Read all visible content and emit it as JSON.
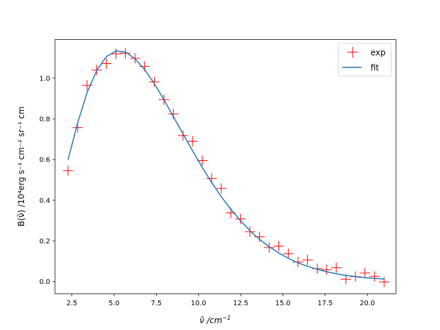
{
  "chart_data": {
    "type": "scatter",
    "xlabel_main": "ν̃",
    "xlabel_unit": " /cm",
    "xlabel_exp": "−1",
    "ylabel": "B(ν̃) /10⁴erg s⁻¹ cm⁻² sr⁻¹ cm",
    "xlim": [
      1.5,
      21.7
    ],
    "ylim": [
      -0.06,
      1.19
    ],
    "xticks": [
      2.5,
      5.0,
      7.5,
      10.0,
      12.5,
      15.0,
      17.5,
      20.0
    ],
    "xtick_labels": [
      "2.5",
      "5.0",
      "7.5",
      "10.0",
      "12.5",
      "15.0",
      "17.5",
      "20.0"
    ],
    "yticks": [
      0.0,
      0.2,
      0.4,
      0.6,
      0.8,
      1.0
    ],
    "ytick_labels": [
      "0.0",
      "0.2",
      "0.4",
      "0.6",
      "0.8",
      "1.0"
    ],
    "grid": false,
    "legend_position": "top-right",
    "series": [
      {
        "name": "exp",
        "kind": "markers",
        "marker": "+",
        "color": "#ff0000",
        "x": [
          2.27,
          2.84,
          3.4,
          3.97,
          4.54,
          5.11,
          5.67,
          6.24,
          6.81,
          7.38,
          7.95,
          8.51,
          9.08,
          9.65,
          10.22,
          10.78,
          11.35,
          11.92,
          12.49,
          13.05,
          13.62,
          14.19,
          14.76,
          15.32,
          15.89,
          16.46,
          17.03,
          17.59,
          18.16,
          18.73,
          19.3,
          19.86,
          20.43,
          21.0
        ],
        "y": [
          0.545,
          0.757,
          0.965,
          1.04,
          1.072,
          1.12,
          1.123,
          1.098,
          1.058,
          0.982,
          0.895,
          0.824,
          0.718,
          0.69,
          0.595,
          0.507,
          0.458,
          0.337,
          0.308,
          0.245,
          0.22,
          0.167,
          0.174,
          0.137,
          0.096,
          0.106,
          0.063,
          0.058,
          0.068,
          0.011,
          0.024,
          0.042,
          0.025,
          -0.002
        ]
      },
      {
        "name": "fit",
        "kind": "line",
        "color": "#1f77b4",
        "x": [
          2.27,
          2.84,
          3.4,
          3.97,
          4.54,
          5.11,
          5.67,
          6.24,
          6.81,
          7.38,
          7.95,
          8.51,
          9.08,
          9.65,
          10.22,
          10.78,
          11.35,
          11.92,
          12.49,
          13.05,
          13.62,
          14.19,
          14.76,
          15.32,
          15.89,
          16.46,
          17.03,
          17.59,
          18.16,
          18.73,
          19.3,
          19.86,
          20.43,
          21.0
        ],
        "y": [
          0.598,
          0.78,
          0.929,
          1.038,
          1.106,
          1.134,
          1.129,
          1.096,
          1.042,
          0.974,
          0.895,
          0.811,
          0.727,
          0.643,
          0.562,
          0.487,
          0.417,
          0.355,
          0.299,
          0.25,
          0.207,
          0.171,
          0.14,
          0.114,
          0.092,
          0.075,
          0.06,
          0.048,
          0.038,
          0.03,
          0.024,
          0.019,
          0.015,
          0.012
        ]
      }
    ]
  }
}
